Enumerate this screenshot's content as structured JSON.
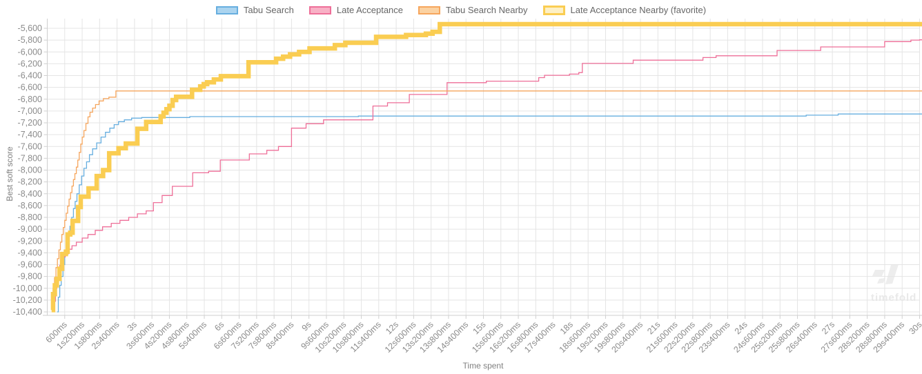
{
  "page": {
    "background": "#ffffff",
    "grid_color": "#e4e4e4",
    "axis_line_color": "#cfcfcf",
    "tick_text_color": "#8b8b8b"
  },
  "legend": {
    "items": [
      {
        "label": "Tabu Search",
        "color": "#66aedf",
        "fill": "#abd4ef",
        "thick": false
      },
      {
        "label": "Late Acceptance",
        "color": "#ee6e98",
        "fill": "#f8b1c6",
        "thick": false
      },
      {
        "label": "Tabu Search Nearby",
        "color": "#f6a55c",
        "fill": "#fbd2a2",
        "thick": false
      },
      {
        "label": "Late Acceptance Nearby (favorite)",
        "color": "#facd52",
        "fill": "#fdf0c5",
        "thick": true
      }
    ]
  },
  "watermark": {
    "text": "timefold",
    "color": "#e9e9e9"
  },
  "chart_data": {
    "type": "line",
    "step": "after",
    "title": "",
    "xlabel": "Time spent",
    "ylabel": "Best soft score",
    "x_unit": "ms",
    "xlim": [
      0,
      30000
    ],
    "ylim": [
      -10455,
      -5450
    ],
    "grid": true,
    "legend_position": "top",
    "x_ticks": {
      "values": [
        600,
        1200,
        1800,
        2400,
        3000,
        3600,
        4200,
        4800,
        5400,
        6000,
        6600,
        7200,
        7800,
        8400,
        9000,
        9600,
        10200,
        10800,
        11400,
        12000,
        12600,
        13200,
        13800,
        14400,
        15000,
        15600,
        16200,
        16800,
        17400,
        18000,
        18600,
        19200,
        19800,
        20400,
        21000,
        21600,
        22200,
        22800,
        23400,
        24000,
        24600,
        25200,
        25800,
        26400,
        27000,
        27600,
        28200,
        28800,
        29400,
        30000
      ],
      "labels": [
        "600ms",
        "1s200ms",
        "1s800ms",
        "2s400ms",
        "3s",
        "3s600ms",
        "4s200ms",
        "4s800ms",
        "5s400ms",
        "6s",
        "6s600ms",
        "7s200ms",
        "7s800ms",
        "8s400ms",
        "9s",
        "9s600ms",
        "10s200ms",
        "10s800ms",
        "11s400ms",
        "12s",
        "12s600ms",
        "13s200ms",
        "13s800ms",
        "14s400ms",
        "15s",
        "15s600ms",
        "16s200ms",
        "16s800ms",
        "17s400ms",
        "18s",
        "18s600ms",
        "19s200ms",
        "19s800ms",
        "20s400ms",
        "21s",
        "21s600ms",
        "22s200ms",
        "22s800ms",
        "23s400ms",
        "24s",
        "24s600ms",
        "25s200ms",
        "25s800ms",
        "26s400ms",
        "27s",
        "27s600ms",
        "28s200ms",
        "28s800ms",
        "29s400ms",
        "30s"
      ]
    },
    "y_ticks": {
      "values": [
        -5600,
        -5800,
        -6000,
        -6200,
        -6400,
        -6600,
        -6800,
        -7000,
        -7200,
        -7400,
        -7600,
        -7800,
        -8000,
        -8200,
        -8400,
        -8600,
        -8800,
        -9000,
        -9200,
        -9400,
        -9600,
        -9800,
        -10000,
        -10200,
        -10400
      ],
      "labels": [
        "-5,600",
        "-5,800",
        "-6,000",
        "-6,200",
        "-6,400",
        "-6,600",
        "-6,800",
        "-7,000",
        "-7,200",
        "-7,400",
        "-7,600",
        "-7,800",
        "-8,000",
        "-8,200",
        "-8,400",
        "-8,600",
        "-8,800",
        "-9,000",
        "-9,200",
        "-9,400",
        "-9,600",
        "-9,800",
        "-10,000",
        "-10,200",
        "-10,400"
      ]
    },
    "series": [
      {
        "name": "Tabu Search",
        "color": "#66aedf",
        "width": 1.3,
        "points": [
          [
            340,
            -10400
          ],
          [
            380,
            -10150
          ],
          [
            430,
            -9950
          ],
          [
            480,
            -9800
          ],
          [
            540,
            -9600
          ],
          [
            600,
            -9420
          ],
          [
            660,
            -9260
          ],
          [
            720,
            -9100
          ],
          [
            780,
            -8950
          ],
          [
            840,
            -8800
          ],
          [
            900,
            -8650
          ],
          [
            960,
            -8530
          ],
          [
            1020,
            -8400
          ],
          [
            1100,
            -8250
          ],
          [
            1180,
            -8100
          ],
          [
            1260,
            -7970
          ],
          [
            1350,
            -7860
          ],
          [
            1450,
            -7740
          ],
          [
            1560,
            -7640
          ],
          [
            1700,
            -7540
          ],
          [
            1850,
            -7440
          ],
          [
            2000,
            -7360
          ],
          [
            2150,
            -7290
          ],
          [
            2300,
            -7230
          ],
          [
            2450,
            -7180
          ],
          [
            2650,
            -7150
          ],
          [
            2900,
            -7120
          ],
          [
            3250,
            -7110
          ],
          [
            4900,
            -7095
          ],
          [
            10700,
            -7085
          ],
          [
            26100,
            -7070
          ],
          [
            27200,
            -7050
          ],
          [
            30000,
            -7050
          ]
        ]
      },
      {
        "name": "Late Acceptance",
        "color": "#ee6e98",
        "width": 1.3,
        "points": [
          [
            220,
            -10220
          ],
          [
            280,
            -10000
          ],
          [
            330,
            -9850
          ],
          [
            380,
            -9720
          ],
          [
            430,
            -9610
          ],
          [
            480,
            -9530
          ],
          [
            540,
            -9470
          ],
          [
            620,
            -9420
          ],
          [
            720,
            -9340
          ],
          [
            850,
            -9280
          ],
          [
            1000,
            -9220
          ],
          [
            1200,
            -9150
          ],
          [
            1400,
            -9090
          ],
          [
            1650,
            -9020
          ],
          [
            1900,
            -8960
          ],
          [
            2200,
            -8900
          ],
          [
            2500,
            -8850
          ],
          [
            2800,
            -8800
          ],
          [
            3100,
            -8740
          ],
          [
            3400,
            -8690
          ],
          [
            3650,
            -8550
          ],
          [
            3950,
            -8430
          ],
          [
            4300,
            -8275
          ],
          [
            5000,
            -8045
          ],
          [
            5550,
            -8020
          ],
          [
            5950,
            -7830
          ],
          [
            6950,
            -7725
          ],
          [
            7550,
            -7665
          ],
          [
            7950,
            -7600
          ],
          [
            8400,
            -7290
          ],
          [
            8900,
            -7215
          ],
          [
            9500,
            -7150
          ],
          [
            11200,
            -6915
          ],
          [
            11700,
            -6860
          ],
          [
            12450,
            -6720
          ],
          [
            13750,
            -6520
          ],
          [
            15100,
            -6495
          ],
          [
            16900,
            -6435
          ],
          [
            17100,
            -6395
          ],
          [
            17960,
            -6375
          ],
          [
            18280,
            -6350
          ],
          [
            18400,
            -6195
          ],
          [
            20150,
            -6140
          ],
          [
            22550,
            -6095
          ],
          [
            23000,
            -6065
          ],
          [
            25100,
            -5975
          ],
          [
            26600,
            -5915
          ],
          [
            28800,
            -5825
          ],
          [
            29700,
            -5800
          ],
          [
            30000,
            -5795
          ]
        ]
      },
      {
        "name": "Tabu Search Nearby",
        "color": "#f6a55c",
        "width": 1.3,
        "points": [
          [
            150,
            -10320
          ],
          [
            200,
            -10000
          ],
          [
            250,
            -9820
          ],
          [
            300,
            -9650
          ],
          [
            350,
            -9500
          ],
          [
            400,
            -9350
          ],
          [
            450,
            -9220
          ],
          [
            500,
            -9090
          ],
          [
            550,
            -8970
          ],
          [
            600,
            -8850
          ],
          [
            650,
            -8730
          ],
          [
            700,
            -8610
          ],
          [
            750,
            -8490
          ],
          [
            800,
            -8380
          ],
          [
            850,
            -8270
          ],
          [
            900,
            -8160
          ],
          [
            950,
            -8060
          ],
          [
            1000,
            -7950
          ],
          [
            1050,
            -7830
          ],
          [
            1100,
            -7700
          ],
          [
            1150,
            -7560
          ],
          [
            1200,
            -7440
          ],
          [
            1260,
            -7330
          ],
          [
            1330,
            -7210
          ],
          [
            1400,
            -7100
          ],
          [
            1470,
            -7020
          ],
          [
            1560,
            -6950
          ],
          [
            1660,
            -6890
          ],
          [
            1780,
            -6830
          ],
          [
            1930,
            -6790
          ],
          [
            2120,
            -6765
          ],
          [
            2360,
            -6660
          ],
          [
            30000,
            -6660
          ]
        ]
      },
      {
        "name": "Late Acceptance Nearby (favorite)",
        "color": "#facd52",
        "width": 6.5,
        "points": [
          [
            150,
            -10370
          ],
          [
            200,
            -10100
          ],
          [
            260,
            -9950
          ],
          [
            330,
            -9840
          ],
          [
            420,
            -9670
          ],
          [
            510,
            -9420
          ],
          [
            640,
            -9380
          ],
          [
            700,
            -9090
          ],
          [
            790,
            -9060
          ],
          [
            870,
            -8860
          ],
          [
            1060,
            -8625
          ],
          [
            1150,
            -8450
          ],
          [
            1420,
            -8310
          ],
          [
            1700,
            -8100
          ],
          [
            1920,
            -8000
          ],
          [
            2130,
            -7715
          ],
          [
            2450,
            -7630
          ],
          [
            2700,
            -7550
          ],
          [
            3100,
            -7300
          ],
          [
            3400,
            -7185
          ],
          [
            3900,
            -7090
          ],
          [
            4000,
            -7030
          ],
          [
            4100,
            -6970
          ],
          [
            4200,
            -6910
          ],
          [
            4310,
            -6815
          ],
          [
            4430,
            -6760
          ],
          [
            4980,
            -6640
          ],
          [
            5260,
            -6585
          ],
          [
            5380,
            -6545
          ],
          [
            5500,
            -6515
          ],
          [
            5730,
            -6465
          ],
          [
            5970,
            -6410
          ],
          [
            6920,
            -6175
          ],
          [
            7870,
            -6115
          ],
          [
            8110,
            -6080
          ],
          [
            8350,
            -6040
          ],
          [
            8660,
            -6000
          ],
          [
            9020,
            -5940
          ],
          [
            9890,
            -5885
          ],
          [
            10250,
            -5845
          ],
          [
            11310,
            -5745
          ],
          [
            12340,
            -5715
          ],
          [
            13020,
            -5690
          ],
          [
            13250,
            -5660
          ],
          [
            13500,
            -5530
          ],
          [
            30000,
            -5530
          ]
        ]
      }
    ]
  }
}
